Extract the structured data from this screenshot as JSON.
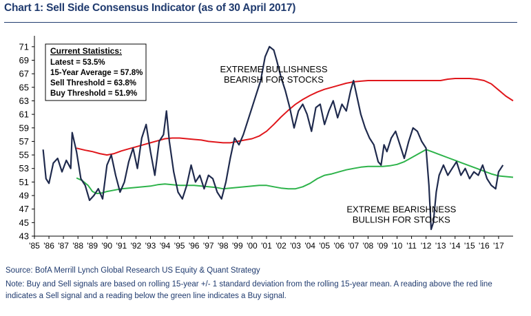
{
  "title": "Chart 1: Sell Side Consensus Indicator (as of 30 April 2017)",
  "source": "Source: BofA Merrill Lynch Global Research US Equity & Quant Strategy",
  "note": "Note: Buy and Sell signals are based on rolling 15-year +/- 1 standard deviation from the rolling 15-year mean. A reading above the red line indicates a Sell signal and a reading below the green line indicates a Buy signal.",
  "colors": {
    "indicator": "#1f2a4d",
    "sell_threshold": "#e0161b",
    "buy_threshold": "#2db34a",
    "title": "#1f3a6e"
  },
  "chart_data": {
    "type": "line",
    "ylim": [
      43,
      72
    ],
    "yticks": [
      43,
      45,
      47,
      49,
      51,
      53,
      55,
      57,
      59,
      61,
      63,
      65,
      67,
      69,
      71
    ],
    "xlim": [
      1985.0,
      2018.0
    ],
    "xtick_labels": [
      "'85",
      "'86",
      "'87",
      "'88",
      "'89",
      "'90",
      "'91",
      "'92",
      "'93",
      "'94",
      "'95",
      "'96",
      "'97",
      "'98",
      "'99",
      "'00",
      "'01",
      "'02",
      "'03",
      "'04",
      "'05",
      "'06",
      "'07",
      "'08",
      "'09",
      "'10",
      "'11",
      "'12",
      "'13",
      "'14",
      "'15",
      "'16",
      "'17"
    ],
    "xtick_years": [
      1985,
      1986,
      1987,
      1988,
      1989,
      1990,
      1991,
      1992,
      1993,
      1994,
      1995,
      1996,
      1997,
      1998,
      1999,
      2000,
      2001,
      2002,
      2003,
      2004,
      2005,
      2006,
      2007,
      2008,
      2009,
      2010,
      2011,
      2012,
      2013,
      2014,
      2015,
      2016,
      2017
    ],
    "grid": false,
    "stats_box": {
      "heading": "Current Statistics:",
      "lines": [
        "Latest = 53.5%",
        "15-Year Average = 57.8%",
        "Sell Threshold = 63.8%",
        "Buy Threshold = 51.9%"
      ]
    },
    "annotations": [
      {
        "lines": [
          "EXTREME BULLISHNESS",
          "BEARISH FOR STOCKS"
        ],
        "x": 2001.5,
        "y": 67.2
      },
      {
        "lines": [
          "EXTREME BEARISHNESS",
          "BULLISH FOR STOCKS"
        ],
        "x": 2010.3,
        "y": 46.5
      }
    ],
    "series": [
      {
        "key": "indicator",
        "x": [
          1985.6,
          1985.8,
          1986.0,
          1986.3,
          1986.6,
          1986.9,
          1987.2,
          1987.5,
          1987.6,
          1987.9,
          1988.2,
          1988.5,
          1988.8,
          1989.1,
          1989.4,
          1989.7,
          1990.0,
          1990.3,
          1990.6,
          1990.9,
          1991.2,
          1991.5,
          1991.8,
          1992.1,
          1992.4,
          1992.7,
          1993.0,
          1993.3,
          1993.6,
          1993.9,
          1994.1,
          1994.3,
          1994.6,
          1994.9,
          1995.2,
          1995.5,
          1995.8,
          1996.1,
          1996.4,
          1996.7,
          1997.0,
          1997.3,
          1997.6,
          1997.9,
          1998.2,
          1998.5,
          1998.8,
          1999.1,
          1999.4,
          1999.7,
          2000.0,
          2000.3,
          2000.6,
          2000.9,
          2001.2,
          2001.5,
          2001.7,
          2002.0,
          2002.3,
          2002.6,
          2002.9,
          2003.2,
          2003.5,
          2003.8,
          2004.1,
          2004.4,
          2004.7,
          2005.0,
          2005.3,
          2005.6,
          2005.9,
          2006.2,
          2006.5,
          2006.8,
          2007.0,
          2007.2,
          2007.5,
          2007.8,
          2008.1,
          2008.4,
          2008.7,
          2008.9,
          2009.1,
          2009.3,
          2009.6,
          2009.9,
          2010.2,
          2010.5,
          2010.8,
          2011.1,
          2011.4,
          2011.7,
          2012.0,
          2012.2,
          2012.35,
          2012.5,
          2012.7,
          2012.9,
          2013.2,
          2013.5,
          2013.8,
          2014.1,
          2014.4,
          2014.7,
          2015.0,
          2015.3,
          2015.6,
          2015.9,
          2016.2,
          2016.5,
          2016.8,
          2017.0,
          2017.3
        ],
        "values": [
          55.8,
          51.5,
          50.8,
          53.8,
          54.5,
          52.5,
          54.2,
          53.0,
          58.3,
          55.5,
          51.5,
          50.5,
          48.3,
          49.0,
          50.0,
          48.5,
          53.5,
          55.0,
          52.0,
          49.5,
          51.0,
          54.0,
          56.0,
          53.0,
          57.5,
          59.5,
          55.5,
          52.0,
          57.0,
          58.0,
          61.5,
          57.0,
          52.5,
          49.5,
          48.5,
          50.5,
          53.5,
          51.0,
          52.0,
          50.0,
          52.0,
          51.5,
          49.5,
          48.5,
          51.0,
          54.5,
          57.5,
          56.5,
          58.0,
          60.0,
          62.0,
          64.0,
          66.0,
          69.5,
          71.0,
          70.5,
          69.0,
          66.5,
          64.5,
          62.0,
          59.0,
          61.5,
          62.5,
          61.0,
          58.5,
          62.0,
          62.5,
          59.5,
          61.5,
          63.0,
          60.5,
          62.5,
          61.5,
          64.5,
          66.0,
          64.0,
          61.0,
          59.0,
          57.5,
          56.5,
          54.0,
          53.5,
          56.5,
          55.5,
          57.5,
          58.5,
          56.5,
          54.5,
          57.0,
          59.0,
          58.5,
          57.0,
          56.0,
          50.5,
          44.0,
          45.0,
          49.5,
          52.0,
          53.5,
          52.0,
          53.0,
          54.0,
          52.0,
          53.0,
          51.5,
          52.5,
          52.0,
          53.5,
          51.5,
          50.5,
          50.0,
          52.5,
          53.5
        ]
      },
      {
        "key": "sell_threshold",
        "x": [
          1987.9,
          1988.5,
          1989.0,
          1989.5,
          1990.0,
          1990.5,
          1991.0,
          1991.5,
          1992.0,
          1992.5,
          1993.0,
          1993.5,
          1994.0,
          1994.5,
          1995.0,
          1995.5,
          1996.0,
          1996.5,
          1997.0,
          1997.5,
          1998.0,
          1998.5,
          1999.0,
          1999.5,
          2000.0,
          2000.5,
          2001.0,
          2001.5,
          2002.0,
          2002.5,
          2003.0,
          2003.5,
          2004.0,
          2004.5,
          2005.0,
          2005.5,
          2006.0,
          2006.5,
          2007.0,
          2007.5,
          2008.0,
          2008.5,
          2009.0,
          2009.5,
          2010.0,
          2010.5,
          2011.0,
          2011.5,
          2012.0,
          2012.5,
          2013.0,
          2013.5,
          2014.0,
          2014.5,
          2015.0,
          2015.5,
          2016.0,
          2016.5,
          2017.0,
          2017.5,
          2018.0
        ],
        "values": [
          56.0,
          55.7,
          55.5,
          55.2,
          55.0,
          55.2,
          55.6,
          55.9,
          56.2,
          56.5,
          56.8,
          57.1,
          57.4,
          57.5,
          57.5,
          57.4,
          57.3,
          57.2,
          57.0,
          56.9,
          56.8,
          56.8,
          57.0,
          57.2,
          57.4,
          57.8,
          58.5,
          59.5,
          60.6,
          61.6,
          62.5,
          63.2,
          63.8,
          64.3,
          64.7,
          65.0,
          65.3,
          65.6,
          65.8,
          65.9,
          66.0,
          66.0,
          66.0,
          66.0,
          66.0,
          66.0,
          66.0,
          66.0,
          66.0,
          66.0,
          66.0,
          66.2,
          66.3,
          66.3,
          66.3,
          66.2,
          66.0,
          65.5,
          64.6,
          63.7,
          63.0
        ]
      },
      {
        "key": "buy_threshold",
        "x": [
          1987.9,
          1988.3,
          1988.7,
          1989.0,
          1989.3,
          1989.7,
          1990.0,
          1990.5,
          1991.0,
          1991.5,
          1992.0,
          1992.5,
          1993.0,
          1993.5,
          1994.0,
          1994.5,
          1995.0,
          1995.5,
          1996.0,
          1996.5,
          1997.0,
          1997.5,
          1998.0,
          1998.5,
          1999.0,
          1999.5,
          2000.0,
          2000.5,
          2001.0,
          2001.5,
          2002.0,
          2002.5,
          2003.0,
          2003.5,
          2004.0,
          2004.5,
          2005.0,
          2005.5,
          2006.0,
          2006.5,
          2007.0,
          2007.5,
          2008.0,
          2008.5,
          2009.0,
          2009.5,
          2010.0,
          2010.5,
          2011.0,
          2011.5,
          2012.0,
          2012.5,
          2013.0,
          2013.5,
          2014.0,
          2014.5,
          2015.0,
          2015.5,
          2016.0,
          2016.5,
          2017.0,
          2017.5,
          2018.0
        ],
        "values": [
          51.6,
          51.2,
          50.5,
          49.6,
          49.3,
          49.4,
          49.6,
          49.8,
          50.0,
          50.1,
          50.2,
          50.3,
          50.4,
          50.6,
          50.7,
          50.6,
          50.5,
          50.5,
          50.5,
          50.4,
          50.3,
          50.2,
          50.0,
          50.1,
          50.2,
          50.3,
          50.4,
          50.5,
          50.5,
          50.3,
          50.1,
          50.0,
          50.0,
          50.3,
          50.8,
          51.5,
          52.0,
          52.2,
          52.5,
          52.8,
          53.0,
          53.2,
          53.3,
          53.3,
          53.3,
          53.4,
          53.6,
          54.0,
          54.6,
          55.2,
          55.8,
          55.4,
          55.0,
          54.6,
          54.2,
          53.8,
          53.4,
          53.0,
          52.6,
          52.2,
          51.9,
          51.8,
          51.7
        ]
      }
    ]
  }
}
